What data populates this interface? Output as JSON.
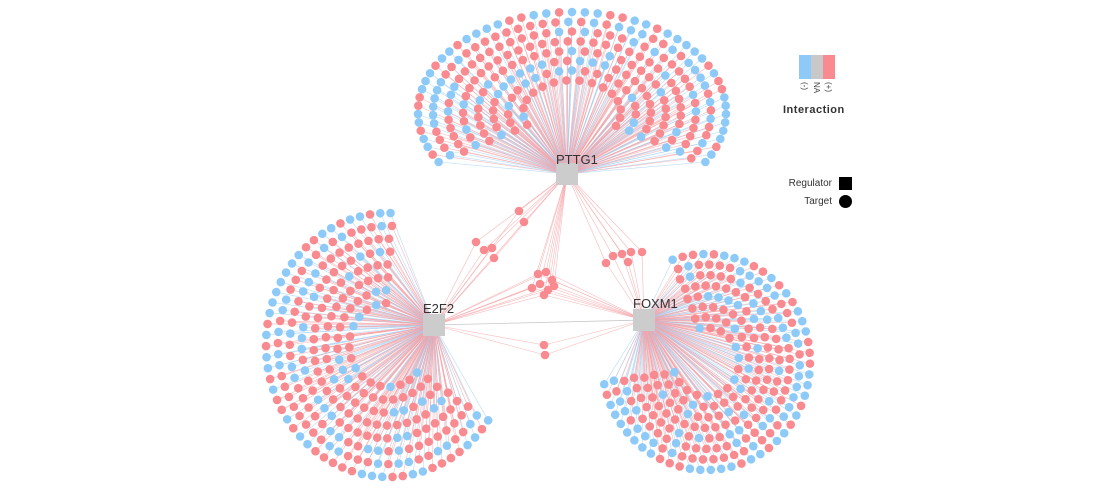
{
  "regulators": [
    "PTTG1",
    "E2F2",
    "FOXM1"
  ],
  "colors": {
    "negative": "#8ecaf8",
    "na": "#c8c8c8",
    "positive": "#f98a8f",
    "regulator_node": "#cccccc",
    "edge_positive": "#f6a1a5",
    "edge_negative": "#9fd0f4",
    "edge_na": "#c8c8c8"
  },
  "legend": {
    "interaction_title": "Interaction",
    "interaction_labels": [
      "(-)",
      "NA",
      "(+)"
    ],
    "shape_labels": {
      "regulator": "Regulator",
      "target": "Target"
    }
  }
}
